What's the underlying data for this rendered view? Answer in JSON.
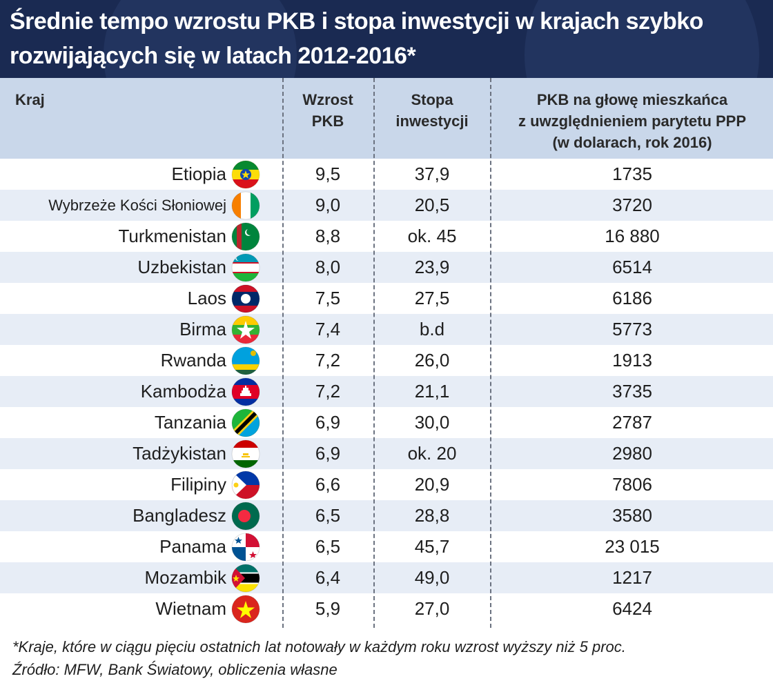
{
  "title": "Średnie tempo wzrostu PKB i stopa inwestycji w krajach szybko rozwijających się w latach 2012-2016*",
  "headers": {
    "country": "Kraj",
    "growth": "Wzrost\nPKB",
    "investment": "Stopa\ninwestycji",
    "gdp": "PKB na głowę mieszkańca\nz uwzględnieniem parytetu PPP\n(w dolarach, rok 2016)"
  },
  "colors": {
    "title_bg": "#1a2a52",
    "header_bg": "#c9d7ea",
    "row_alt": "#e7edf6"
  },
  "chart_data": {
    "type": "table",
    "columns": [
      "Kraj",
      "Wzrost PKB",
      "Stopa inwestycji",
      "PKB na głowę mieszkańca z uwzględnieniem parytetu PPP (w dolarach, rok 2016)"
    ],
    "rows": [
      {
        "country": "Etiopia",
        "flag": "ethiopia-flag",
        "growth": "9,5",
        "investment": "37,9",
        "gdp": "1735"
      },
      {
        "country": "Wybrzeże Kości Słoniowej",
        "flag": "ivory-coast-flag",
        "growth": "9,0",
        "investment": "20,5",
        "gdp": "3720"
      },
      {
        "country": "Turkmenistan",
        "flag": "turkmenistan-flag",
        "growth": "8,8",
        "investment": "ok. 45",
        "gdp": "16 880"
      },
      {
        "country": "Uzbekistan",
        "flag": "uzbekistan-flag",
        "growth": "8,0",
        "investment": "23,9",
        "gdp": "6514"
      },
      {
        "country": "Laos",
        "flag": "laos-flag",
        "growth": "7,5",
        "investment": "27,5",
        "gdp": "6186"
      },
      {
        "country": "Birma",
        "flag": "myanmar-flag",
        "growth": "7,4",
        "investment": "b.d",
        "gdp": "5773"
      },
      {
        "country": "Rwanda",
        "flag": "rwanda-flag",
        "growth": "7,2",
        "investment": "26,0",
        "gdp": "1913"
      },
      {
        "country": "Kambodża",
        "flag": "cambodia-flag",
        "growth": "7,2",
        "investment": "21,1",
        "gdp": "3735"
      },
      {
        "country": "Tanzania",
        "flag": "tanzania-flag",
        "growth": "6,9",
        "investment": "30,0",
        "gdp": "2787"
      },
      {
        "country": "Tadżykistan",
        "flag": "tajikistan-flag",
        "growth": "6,9",
        "investment": "ok. 20",
        "gdp": "2980"
      },
      {
        "country": "Filipiny",
        "flag": "philippines-flag",
        "growth": "6,6",
        "investment": "20,9",
        "gdp": "7806"
      },
      {
        "country": "Bangladesz",
        "flag": "bangladesh-flag",
        "growth": "6,5",
        "investment": "28,8",
        "gdp": "3580"
      },
      {
        "country": "Panama",
        "flag": "panama-flag",
        "growth": "6,5",
        "investment": "45,7",
        "gdp": "23 015"
      },
      {
        "country": "Mozambik",
        "flag": "mozambique-flag",
        "growth": "6,4",
        "investment": "49,0",
        "gdp": "1217"
      },
      {
        "country": "Wietnam",
        "flag": "vietnam-flag",
        "growth": "5,9",
        "investment": "27,0",
        "gdp": "6424"
      }
    ]
  },
  "footnote": "*Kraje, które w ciągu pięciu ostatnich lat notowały w każdym roku wzrost wyższy niż 5 proc.",
  "source": "Źródło: MFW, Bank Światowy, obliczenia własne"
}
